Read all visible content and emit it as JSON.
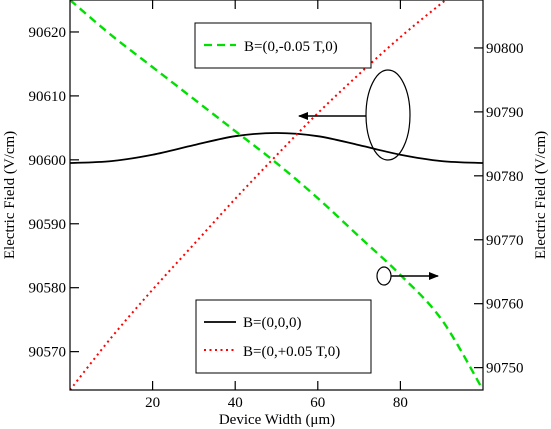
{
  "chart_data": {
    "type": "line",
    "xlabel": "Device Width (μm)",
    "ylabel_left": "Electric Field (V/cm)",
    "ylabel_right": "Electric Field (V/cm)",
    "xlim": [
      0,
      100
    ],
    "ylim_left": [
      90564,
      90625
    ],
    "ylim_right": [
      90746.5,
      90807.5
    ],
    "x_ticks": [
      20,
      40,
      60,
      80
    ],
    "y_ticks_left": [
      90570,
      90580,
      90590,
      90600,
      90610,
      90620
    ],
    "y_ticks_right": [
      90750,
      90760,
      90770,
      90780,
      90790,
      90800
    ],
    "grid": false,
    "series": [
      {
        "name": "B=(0,0,0)",
        "axis": "left",
        "color": "#000000",
        "style": "solid",
        "x": [
          0,
          10,
          20,
          30,
          40,
          50,
          60,
          70,
          80,
          90,
          100
        ],
        "y": [
          90599.5,
          90599.8,
          90600.8,
          90602.3,
          90603.7,
          90604.2,
          90603.7,
          90602.3,
          90600.8,
          90599.8,
          90599.5
        ]
      },
      {
        "name": "B=(0,+0.05 T,0)",
        "axis": "left",
        "color": "#ff0000",
        "style": "dotted",
        "x": [
          0,
          10,
          20,
          30,
          40,
          50,
          60,
          70,
          80,
          90,
          100
        ],
        "y": [
          90564,
          90572.2,
          90579.7,
          90586.8,
          90593.9,
          90600.7,
          90607.3,
          90613.4,
          90619.2,
          90624.5,
          90629.5
        ]
      },
      {
        "name": "B=(0,-0.05 T,0)",
        "axis": "right",
        "color": "#00e000",
        "style": "dashed",
        "x": [
          0,
          10,
          20,
          30,
          40,
          50,
          60,
          70,
          80,
          90,
          100
        ],
        "y": [
          90807.5,
          90802,
          90797,
          90792,
          90787,
          90782,
          90776.5,
          90770.5,
          90764.5,
          90757.5,
          90746.5
        ]
      }
    ],
    "legend_top": {
      "placement": "top-center",
      "entries": [
        "B=(0,-0.05 T,0)"
      ]
    },
    "legend_bottom": {
      "placement": "bottom-center",
      "entries": [
        "B=(0,0,0)",
        "B=(0,+0.05 T,0)"
      ]
    },
    "annotations": [
      {
        "name": "ellipse-left-axis-pointer",
        "meaning": "ellipse around solid and dotted curves with arrow pointing to left axis"
      },
      {
        "name": "ellipse-right-axis-pointer",
        "meaning": "small ellipse on dashed curve with arrow pointing to right axis"
      }
    ]
  }
}
